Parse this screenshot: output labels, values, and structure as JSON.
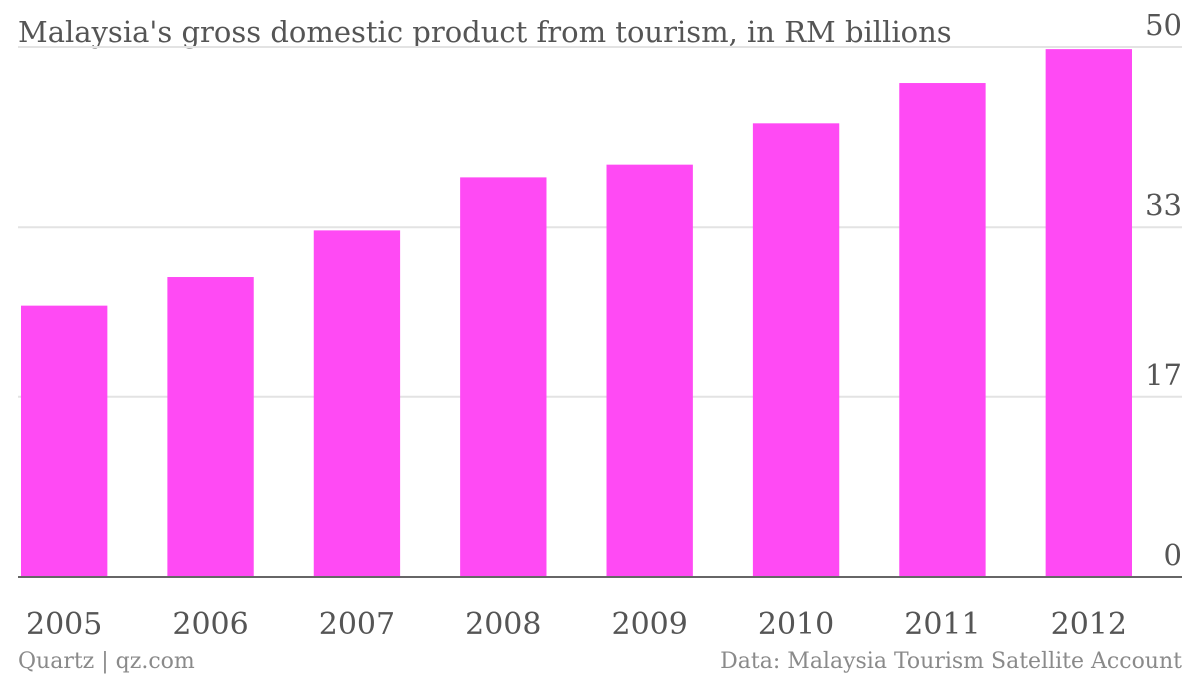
{
  "title": "Malaysia's gross domestic product from tourism, in RM billions",
  "credit": "Quartz | qz.com",
  "source": "Data: Malaysia Tourism Satellite Account",
  "colors": {
    "bar": "#ff4af4",
    "grid": "#e3e3e3",
    "text": "#555555"
  },
  "chart_data": {
    "type": "bar",
    "title": "Malaysia's gross domestic product from tourism, in RM billions",
    "categories": [
      "2005",
      "2006",
      "2007",
      "2008",
      "2009",
      "2010",
      "2011",
      "2012"
    ],
    "values": [
      25.6,
      28.3,
      32.7,
      37.7,
      38.9,
      42.8,
      46.6,
      49.8
    ],
    "ylim": [
      0,
      50
    ],
    "yticks": [
      "0",
      "17",
      "33",
      "50"
    ],
    "y_axis_side": "right",
    "grid": true
  }
}
